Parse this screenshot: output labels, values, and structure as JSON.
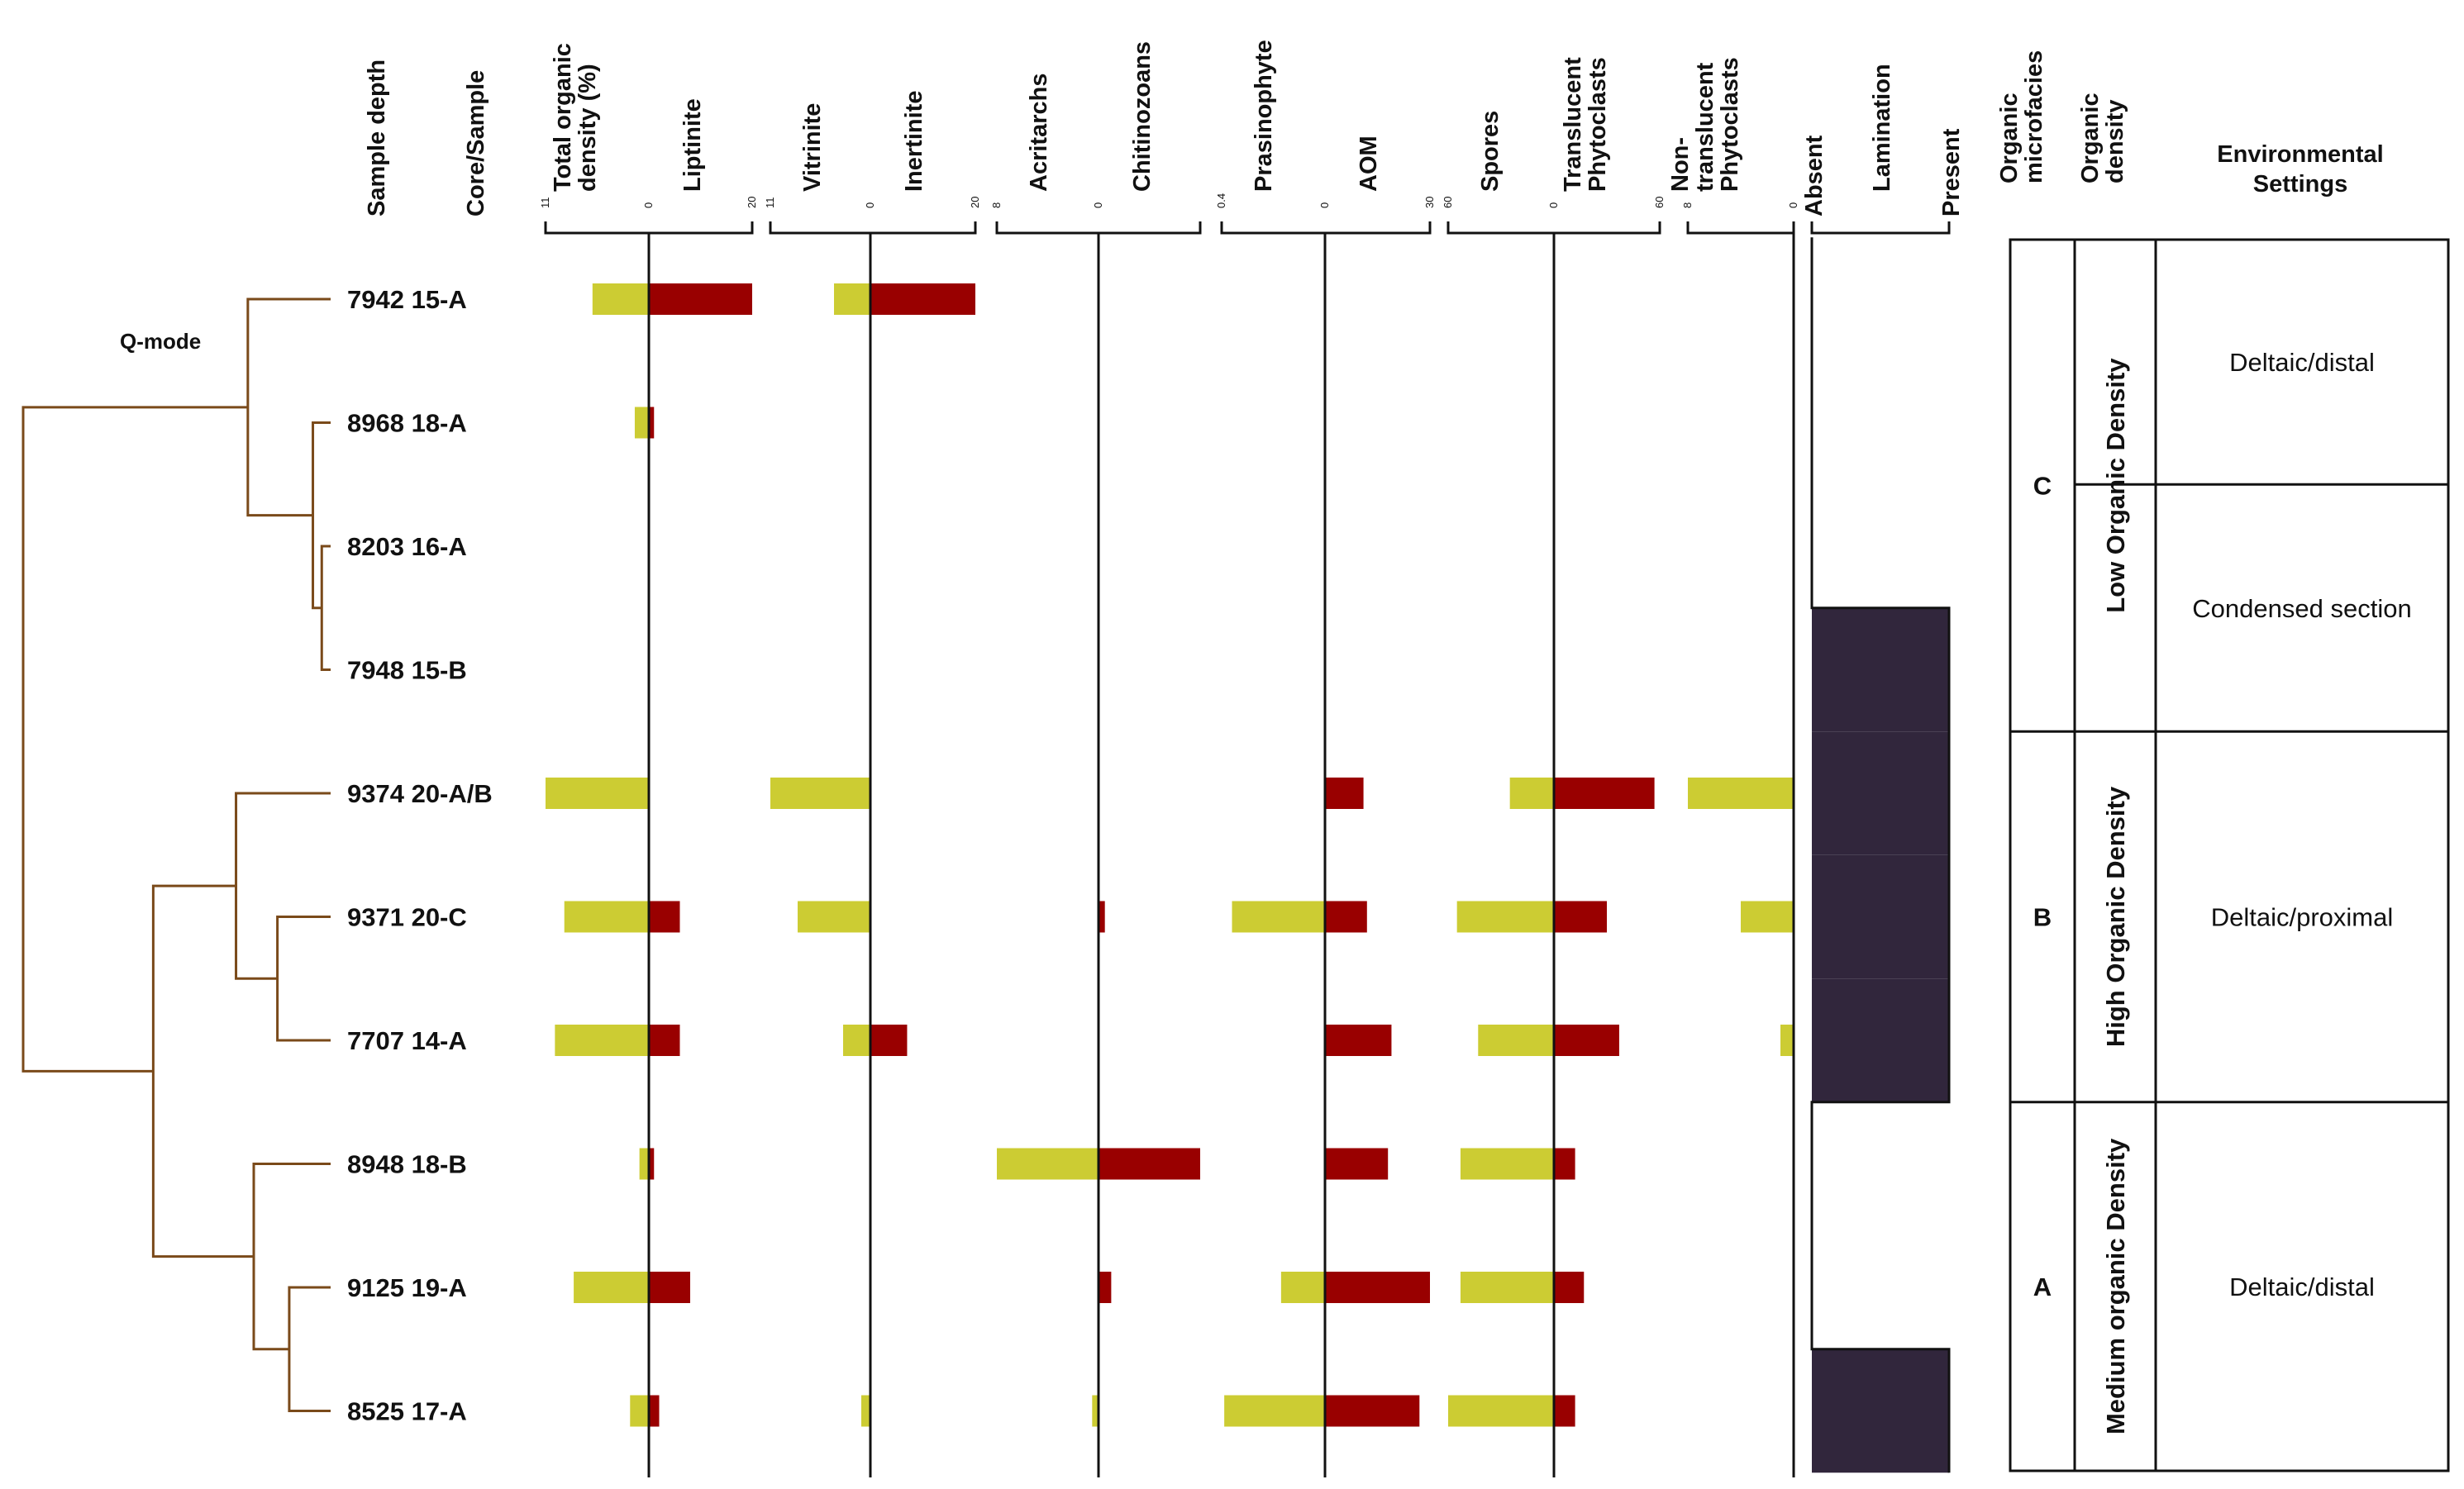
{
  "chart_data": {
    "type": "bar",
    "dendrogram_label": "Q-mode",
    "header_left": [
      "Sample depth",
      "Core/Sample"
    ],
    "rows": [
      {
        "depth": "7942",
        "core": "15-A"
      },
      {
        "depth": "8968",
        "core": "18-A"
      },
      {
        "depth": "8203",
        "core": "16-A"
      },
      {
        "depth": "7948",
        "core": "15-B"
      },
      {
        "depth": "9374",
        "core": "20-A/B"
      },
      {
        "depth": "9371",
        "core": "20-C"
      },
      {
        "depth": "7707",
        "core": "14-A"
      },
      {
        "depth": "8948",
        "core": "18-B"
      },
      {
        "depth": "9125",
        "core": "19-A"
      },
      {
        "depth": "8525",
        "core": "17-A"
      }
    ],
    "column_pairs": [
      {
        "left_title": [
          "Total organic",
          "density (%)"
        ],
        "right_title": [
          "Liptinite"
        ],
        "ticks": [
          "11",
          "0",
          "20"
        ],
        "left_max": 11,
        "right_max": 20,
        "left_color": "#cccc33",
        "right_color": "#990000",
        "left_values": [
          6,
          1.5,
          0,
          0,
          11,
          9,
          10,
          1,
          8,
          2
        ],
        "right_values": [
          20,
          1,
          0,
          0,
          0,
          6,
          6,
          1,
          8,
          2
        ]
      },
      {
        "left_title": [
          "Vitrinite"
        ],
        "right_title": [
          "Inertinite"
        ],
        "ticks": [
          "11",
          "0",
          "20"
        ],
        "left_max": 11,
        "right_max": 20,
        "left_color": "#cccc33",
        "right_color": "#990000",
        "left_values": [
          4,
          0,
          0,
          0,
          11,
          8,
          3,
          0,
          0,
          1
        ],
        "right_values": [
          20,
          0,
          0,
          0,
          0,
          0,
          7,
          0,
          0,
          0
        ]
      },
      {
        "left_title": [
          "Acritarchs"
        ],
        "right_title": [
          "Chitinozoans"
        ],
        "ticks": [
          "8",
          "0"
        ],
        "left_max": 8,
        "right_max": 8,
        "left_color": "#cccc33",
        "right_color": "#990000",
        "left_values": [
          0,
          0,
          0,
          0,
          0,
          0,
          0,
          8,
          0,
          0.5
        ],
        "right_values": [
          0,
          0,
          0,
          0,
          0,
          0.5,
          0,
          8,
          1,
          0
        ]
      },
      {
        "left_title": [
          "Prasinophyte"
        ],
        "right_title": [
          "AOM"
        ],
        "ticks": [
          "0.4",
          "0",
          "30"
        ],
        "left_max": 0.4,
        "right_max": 30,
        "left_color": "#cccc33",
        "right_color": "#990000",
        "left_values": [
          0,
          0,
          0,
          0,
          0,
          0.36,
          0,
          0,
          0.17,
          0.39
        ],
        "right_values": [
          0,
          0,
          0,
          0,
          11,
          12,
          19,
          18,
          30,
          27
        ]
      },
      {
        "left_title": [
          "Spores"
        ],
        "right_title": [
          "Translucent",
          "Phytoclasts"
        ],
        "ticks": [
          "60",
          "0",
          "60"
        ],
        "left_max": 60,
        "right_max": 60,
        "left_color": "#cccc33",
        "right_color": "#990000",
        "left_values": [
          0,
          0,
          0,
          0,
          25,
          55,
          43,
          53,
          53,
          60
        ],
        "right_values": [
          0,
          0,
          0,
          0,
          57,
          30,
          37,
          12,
          17,
          12
        ]
      },
      {
        "left_title": [
          "Non-",
          "translucent",
          "Phytoclasts"
        ],
        "right_title": [],
        "ticks": [
          "8",
          "0"
        ],
        "left_max": 8,
        "right_max": 8,
        "left_color": "#cccc33",
        "right_color": "#990000",
        "left_values": [
          0,
          0,
          0,
          0,
          8,
          4,
          1,
          0,
          0,
          0
        ],
        "right_values": [
          0,
          0,
          0,
          0,
          0,
          0,
          0,
          0,
          0,
          0
        ]
      }
    ],
    "lamination": {
      "title": "Lamination",
      "absent_label": "Absent",
      "present_label": "Present",
      "fill_color": "#31263c",
      "present": [
        false,
        false,
        false,
        true,
        true,
        true,
        true,
        false,
        false,
        true
      ]
    },
    "table": {
      "headers": [
        [
          "Organic",
          "microfacies"
        ],
        [
          "Organic",
          "density"
        ],
        [
          "Environmental",
          "Settings"
        ]
      ],
      "groups": [
        {
          "facies": "C",
          "density": "Low Organic Density",
          "rows": [
            0,
            3
          ],
          "settings": [
            {
              "text": "Deltaic/distal",
              "rows": [
                0,
                1
              ]
            },
            {
              "text": "Condensed section",
              "rows": [
                2,
                3
              ]
            }
          ]
        },
        {
          "facies": "B",
          "density": "High Organic Density",
          "rows": [
            4,
            6
          ],
          "settings": [
            {
              "text": "Deltaic/proximal",
              "rows": [
                4,
                6
              ]
            }
          ]
        },
        {
          "facies": "A",
          "density": "Medium organic Density",
          "rows": [
            7,
            9
          ],
          "settings": [
            {
              "text": "Deltaic/distal",
              "rows": [
                7,
                9
              ]
            }
          ]
        }
      ]
    },
    "dendrogram_color": "#7a4a1a",
    "dendrogram": {
      "order": [
        0,
        1,
        2,
        3,
        4,
        5,
        6,
        7,
        8,
        9
      ],
      "merges": [
        {
          "a": 2,
          "b": 3,
          "h": 0.015
        },
        {
          "a": 1,
          "b": 10,
          "h": 0.03
        },
        {
          "a": 0,
          "b": 11,
          "h": 0.14
        },
        {
          "a": 5,
          "b": 6,
          "h": 0.09
        },
        {
          "a": 4,
          "b": 13,
          "h": 0.16
        },
        {
          "a": 8,
          "b": 9,
          "h": 0.07
        },
        {
          "a": 7,
          "b": 15,
          "h": 0.13
        },
        {
          "a": 14,
          "b": 16,
          "h": 0.3
        },
        {
          "a": 12,
          "b": 17,
          "h": 0.52
        }
      ],
      "max_h": 0.52
    }
  }
}
